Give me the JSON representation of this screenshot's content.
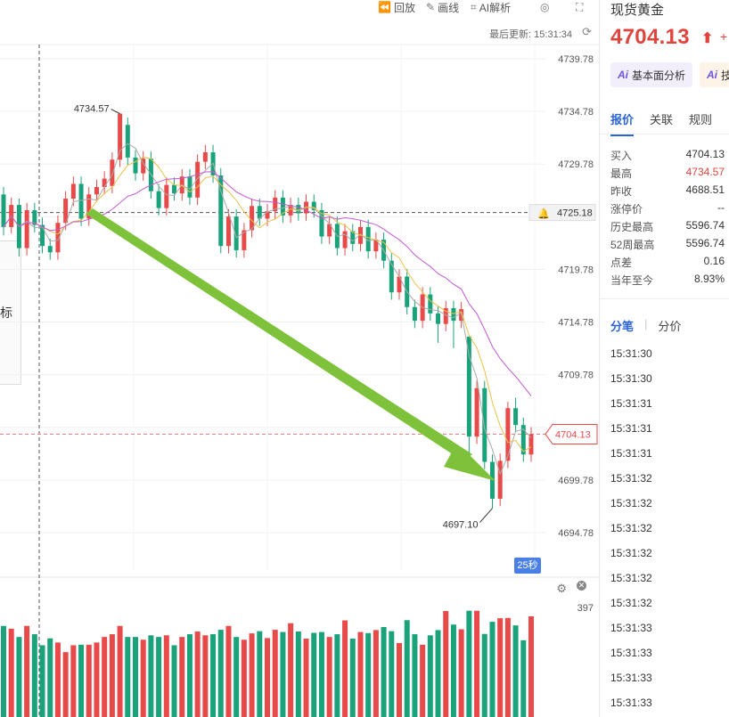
{
  "toolbar": {
    "replay_label": "回放",
    "draw_label": "画线",
    "ai_label": "AI解析",
    "last_update_label": "最后更新: 15:31:34"
  },
  "colors": {
    "up": "#e84a4a",
    "down": "#1aa37a",
    "ma_short": "#aaaaaa",
    "ma_mid": "#e8c24a",
    "ma_long": "#c25ad3",
    "arrow": "#7dc23a",
    "accent": "#2a63d8"
  },
  "chart": {
    "price_axis_labels": [
      "4739.78",
      "4734.78",
      "4729.78",
      "4725.18",
      "4719.78",
      "4714.78",
      "4709.78",
      "4704.13",
      "4699.78",
      "4694.78"
    ],
    "high_marker": "4734.57",
    "low_marker": "4697.10",
    "current_price_tag": "4704.13",
    "crosshair_price_tag": "4725.18",
    "seconds_badge": "25秒",
    "volume_max_label": "397",
    "indicator_partial_label": "标"
  },
  "chart_data": {
    "type": "candlestick",
    "high": 4734.57,
    "low": 4697.1,
    "last": 4704.13,
    "reference_level": 4725.18,
    "ylim": [
      4694.78,
      4739.78
    ],
    "volume_max": 397,
    "candles": [
      [
        4726.9,
        4723.8,
        4727.6,
        4723.0
      ],
      [
        4723.8,
        4725.9,
        4726.6,
        4723.2
      ],
      [
        4725.9,
        4721.8,
        4726.5,
        4721.0
      ],
      [
        4721.8,
        4725.4,
        4726.1,
        4721.1
      ],
      [
        4725.4,
        4724.0,
        4726.1,
        4723.3
      ],
      [
        4724.0,
        4722.0,
        4724.7,
        4721.3
      ],
      [
        4722.0,
        4721.4,
        4722.7,
        4720.7
      ],
      [
        4721.4,
        4724.2,
        4724.9,
        4720.7
      ],
      [
        4724.2,
        4726.5,
        4727.2,
        4723.5
      ],
      [
        4726.5,
        4727.9,
        4728.6,
        4725.8
      ],
      [
        4727.9,
        4724.6,
        4728.6,
        4723.9
      ],
      [
        4724.6,
        4726.9,
        4727.6,
        4723.9
      ],
      [
        4726.9,
        4727.6,
        4728.3,
        4726.2
      ],
      [
        4727.6,
        4728.4,
        4729.1,
        4726.9
      ],
      [
        4727.7,
        4730.2,
        4730.9,
        4727.0
      ],
      [
        4730.2,
        4734.57,
        4734.57,
        4729.5
      ],
      [
        4733.5,
        4730.4,
        4734.2,
        4729.7
      ],
      [
        4730.4,
        4728.9,
        4731.1,
        4728.2
      ],
      [
        4728.9,
        4730.3,
        4731.0,
        4728.2
      ],
      [
        4730.3,
        4727.2,
        4731.0,
        4726.5
      ],
      [
        4727.2,
        4725.6,
        4727.9,
        4724.9
      ],
      [
        4725.6,
        4727.8,
        4728.5,
        4724.9
      ],
      [
        4727.8,
        4727.0,
        4728.5,
        4726.3
      ],
      [
        4727.0,
        4728.6,
        4729.3,
        4726.3
      ],
      [
        4728.6,
        4726.6,
        4729.3,
        4725.9
      ],
      [
        4726.6,
        4730.0,
        4730.7,
        4725.9
      ],
      [
        4730.0,
        4730.9,
        4731.6,
        4729.3
      ],
      [
        4730.9,
        4728.7,
        4731.6,
        4728.0
      ],
      [
        4728.7,
        4722.0,
        4729.4,
        4721.3
      ],
      [
        4722.0,
        4724.8,
        4725.5,
        4721.3
      ],
      [
        4724.8,
        4721.6,
        4725.5,
        4720.9
      ],
      [
        4721.6,
        4723.5,
        4724.2,
        4720.9
      ],
      [
        4723.5,
        4725.8,
        4726.5,
        4722.8
      ],
      [
        4725.8,
        4724.6,
        4726.5,
        4723.9
      ],
      [
        4724.6,
        4725.3,
        4726.0,
        4723.9
      ],
      [
        4725.3,
        4726.6,
        4727.3,
        4724.6
      ],
      [
        4726.6,
        4724.9,
        4727.3,
        4724.2
      ],
      [
        4724.9,
        4725.9,
        4726.6,
        4724.2
      ],
      [
        4725.9,
        4725.1,
        4726.6,
        4724.4
      ],
      [
        4725.1,
        4726.2,
        4726.9,
        4724.4
      ],
      [
        4726.2,
        4725.4,
        4726.9,
        4724.7
      ],
      [
        4725.4,
        4722.9,
        4726.1,
        4722.2
      ],
      [
        4722.9,
        4724.1,
        4724.8,
        4722.2
      ],
      [
        4724.1,
        4721.8,
        4724.8,
        4721.1
      ],
      [
        4721.8,
        4723.4,
        4724.1,
        4721.1
      ],
      [
        4723.4,
        4722.2,
        4724.1,
        4721.5
      ],
      [
        4722.2,
        4723.8,
        4724.5,
        4721.5
      ],
      [
        4723.8,
        4721.5,
        4724.5,
        4720.8
      ],
      [
        4721.5,
        4722.6,
        4723.3,
        4720.8
      ],
      [
        4722.6,
        4720.6,
        4723.3,
        4719.9
      ],
      [
        4720.6,
        4717.6,
        4721.3,
        4716.9
      ],
      [
        4717.6,
        4719.1,
        4719.8,
        4716.9
      ],
      [
        4719.1,
        4716.2,
        4719.8,
        4715.5
      ],
      [
        4716.2,
        4714.9,
        4716.9,
        4714.2
      ],
      [
        4714.9,
        4717.4,
        4718.1,
        4714.2
      ],
      [
        4717.4,
        4715.6,
        4718.1,
        4714.9
      ],
      [
        4715.6,
        4714.6,
        4716.3,
        4712.8
      ],
      [
        4714.6,
        4716.1,
        4716.8,
        4713.9
      ],
      [
        4716.1,
        4714.9,
        4716.8,
        4712.3
      ],
      [
        4714.9,
        4716.0,
        4716.7,
        4714.2
      ],
      [
        4713.4,
        4703.9,
        4713.4,
        4701.0
      ],
      [
        4703.9,
        4708.5,
        4709.2,
        4703.2
      ],
      [
        4708.5,
        4701.5,
        4709.2,
        4700.8
      ],
      [
        4701.5,
        4698.0,
        4702.2,
        4697.1
      ],
      [
        4698.0,
        4701.6,
        4702.3,
        4697.3
      ],
      [
        4701.6,
        4706.6,
        4707.2,
        4700.9
      ],
      [
        4706.6,
        4705.0,
        4707.6,
        4704.3
      ],
      [
        4705.0,
        4702.2,
        4705.7,
        4701.5
      ],
      [
        4702.2,
        4704.13,
        4704.8,
        4701.5
      ]
    ],
    "volumes": [
      330,
      320,
      290,
      330,
      300,
      260,
      285,
      270,
      235,
      260,
      262,
      262,
      270,
      290,
      300,
      330,
      290,
      290,
      280,
      296,
      290,
      296,
      260,
      290,
      300,
      310,
      296,
      300,
      316,
      330,
      290,
      280,
      303,
      311,
      286,
      316,
      308,
      340,
      310,
      284,
      305,
      308,
      290,
      300,
      350,
      284,
      308,
      304,
      315,
      326,
      311,
      268,
      351,
      300,
      262,
      296,
      315,
      384,
      335,
      318,
      385,
      385,
      301,
      345,
      358,
      359,
      332,
      278,
      365
    ]
  },
  "sidebar": {
    "title": "现货黄金",
    "price": "4704.13",
    "change_partial": "+",
    "ai_buttons": [
      "基本面分析",
      "技"
    ],
    "tabs": [
      "报价",
      "关联",
      "规则"
    ],
    "quotes": [
      {
        "label": "买入",
        "value": "4704.13"
      },
      {
        "label": "最高",
        "value": "4734.57"
      },
      {
        "label": "昨收",
        "value": "4688.51"
      },
      {
        "label": "涨停价",
        "value": "--"
      },
      {
        "label": "历史最高",
        "value": "5596.74"
      },
      {
        "label": "52周最高",
        "value": "5596.74"
      },
      {
        "label": "点差",
        "value": "0.16"
      },
      {
        "label": "当年至今",
        "value": "8.93%"
      }
    ],
    "tabs2": [
      "分笔",
      "分价"
    ],
    "tick_times": [
      "15:31:30",
      "15:31:30",
      "15:31:30",
      "15:31:31",
      "15:31:31",
      "15:31:31",
      "15:31:32",
      "15:31:32",
      "15:31:32",
      "15:31:32",
      "15:31:32",
      "15:31:32",
      "15:31:33",
      "15:31:33",
      "15:31:33",
      "15:31:33"
    ]
  }
}
